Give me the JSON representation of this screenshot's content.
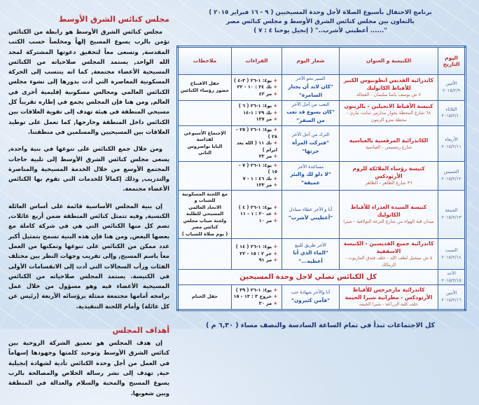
{
  "left": {
    "heading1": "مجلس كنائس الشرق الأوسط",
    "paragraphs1": [
      "مجلس كنائس الشرق الأوسط هو رابطة من الكنائس تؤمن بالرب يسوع المسيح إلهاً ومخلصاً حسب الكتب المقدسة, وتسعى معاً لتحقيق دعوتها المشتركة لمجد الله الواحد, يستمد المجلس صلاحياته من الكنائس المسيحية الأعضاء مجتمعة, كما انه ينتسب إلى الحركة المسكونية المعاصرة التي أدت بدورها إلى نشوء مجلس الكنائس العالمي ومجالس مسكونية إقليمية أخرى في العالم, ومن هنا فإن المجلس يجمع في إطاره تقريباً كل مسيحي المنطقة في هيئة تهدف إلى تقوية العلاقات بين الكنائس داخل المنطقة وخارجها, كما تعمل على توطيد العلاقات بين المسيحيين والمسلمين في منطقتنا.",
      "ومن خلال جمع الكنائس على تنوعها في بنية واحدة, يسعى مجلس كنائس الشرق الأوسط إلى تلبية حاجات المجتمع الأوسع من خلال الخدمة المسيحية والمناصرة والتدريب, وذلك إكمالاً للخدمات التي تقوم بها الكنائس الأعضاء مجتمعة.",
      "إن بنية المجلس الأساسية قائمة على أساس العائلة الكنسية, وفيه تتمثل كنائس المنطقة ضمن أربع عائلات, تضم كل منها الكنائس التي هي في شركة كاملة مع بعضها البعض, ومن هنا فإن هذه البنية تسمح بتمثيل أكبر عدد ممكن من الكنائس على تنوعها وتمكنها من العمل معاً باسم المسيح, وإلى تقريب وجهات النظر بين مختلف الفئات ورأب السجالات التي أدت إلى الانقسامات الأولى في الكنيسة. يستمد المجلس صلاحياته من الكنائس المسيحية الأعضاء فيه وهو مسؤول من خلال عمل برامجه أمامها مجتمعة ممثلة برؤسائه الأربعة (رئيس عن كل عائلة) وأمام اللجنة التنفيذية."
    ],
    "heading2": "أهداف المجلس",
    "paragraph2": "إن هدف المجلس هو تعميق الشركة الروحية بين كنائس الشرق الأوسط وتوحيد كلمتها وجهودها إسهاماً في العمل من أجل وحدة الكنائس تأدية لشهادة إنجيلية حية, تهدف إلى نشر رسالة الخلاص والمصالحة بالرب يسوع المسيح والمحبة والسلام والعدالة في المنطقة وبين شعوبها."
  },
  "header": {
    "line1": "برنامج الاحتفال بأسبوع الصلاة لأجل وحدة المسيحيين ( ٩ - ١٦ فبراير ٢٠١٥ )",
    "line2": "بالتعاون بين مجلس كنائس الشرق الأوسط و مجلس كنائس مصر",
    "line3": "\"...... أعطيني لأشرب..\" ( إنجيل يوحنا ٤ : ٧ )"
  },
  "table": {
    "columns": [
      "اليوم التاريخ",
      "الكنيسة و العنوان",
      "شعار اليوم",
      "القراءات",
      "ملاحظات"
    ],
    "rows": [
      {
        "day": "الأثنين",
        "date": "٢٠١٥/٢/٩",
        "church": "كاتدرائية القديس انطونيوس الكبير للأقباط الكاثوليك",
        "address": "٧ ش يوسف باشا سليمان - الفجالة",
        "slogan": "السير نحو الآخر",
        "quote": "\"كان لابد أن يجتاز السامرة\"",
        "readings": [
          "يو٤: ١-٢٦ ( ٣-٤ )",
          "تك ٢٤ : ١٠ - ٢٢",
          "مز ٤٢"
        ],
        "notes": [
          "حفل الافتتاح",
          "حضور رؤساء الكنائس"
        ]
      },
      {
        "day": "الثلاثاء",
        "date": "٢٠١٥/٢/١٠",
        "church": "كنيسة الأقباط الانجيلين - بالزيتون",
        "address": "٦٨ شارع المحطة بجوار مدارس سانت ماري - محطة مترو الزيتون",
        "slogan": "التعب من أجل الآخر",
        "quote": "\"كان يسوع قد تعب من السفر\"",
        "readings": [
          "يو٤: ١-٢٦ ( ٦ )",
          "تك ٢٩ : ١-١٤",
          "مز ١٣٧"
        ],
        "notes": []
      },
      {
        "day": "الأربعاء",
        "date": "٢٠١٥/٢/١١",
        "church": "الكاتدرائية المرقسية بالعباسية",
        "address": "شارع رمسيس - العباسية",
        "slogan": "الترك من أجل الآخر",
        "quote": "\"فتركت المرأة جرتها\"",
        "readings": [
          "يو٤: ١-٢٦ ( ٢٥ - ٢٨ )",
          "تك ١١ ( الله يعد ابرام )",
          "مز ٢٣"
        ],
        "notes": [
          "الإجتماع الأسبوعي لقداسة",
          "البابا تواضروس الثاني"
        ]
      },
      {
        "day": "الخميس",
        "date": "٢٠١٥/٢/١٢",
        "church": "كنيسة رؤساء الملائكة للروم الأرثوذكس",
        "address": "٣٦ شارع الظاهر - الظاهر",
        "slogan": "مساعدة الآخر",
        "quote": "\"لا دلو لك والبئر عميقة\"",
        "readings": [
          "يو٤: ١-٢٦ ( ٧ - ١٥ )",
          "تك ٤٦ : ١ - ٧",
          "مز ١٣٣"
        ],
        "notes": []
      },
      {
        "day": "الجمعة",
        "date": "٢٠١٥/٢/١٣",
        "church": "كنيسة السيدة العذراء للأقباط الكاثوليك",
        "address": "ميدان قبة الهواء من شارع الترعة البولاقية - شبرا",
        "slogan": "أنا و الآخر عطاء متبادل",
        "quote": "\"أعطيني لأشرب\"",
        "readings": [
          "يو٤: ١-٢٦ ( ٤ )",
          "عد ٢٠ : ١ - ١١",
          "مز ١٠"
        ],
        "notes": [
          "مع اللجنة المسكونية للشباب و",
          "الاتحاد العالمي المسيحي للطلبة",
          "ولجنة شباب مجلس كنائس مصر",
          "( يوم صلاة للشباب )"
        ]
      },
      {
        "day": "السبت",
        "date": "٢٠١٥/٢/١٤",
        "church": "كاتدرائية جميع القديسين - الكنيسة الاسقفية",
        "address": "٥ ش ميشيل لطف الله - خلف فندق الماريوت - الزمالك",
        "slogan": "الآخر طريق للنبع",
        "quote": "\"الماء الذي أنا أعطيه...\"",
        "readings": [
          "يو٤: ١-٢٦ ( ١٤ )",
          "خر ٢ : ١٥ - ٢٢",
          "مز ٩١"
        ],
        "notes": []
      },
      {
        "day": "الأحد",
        "date": "٢٠١٥/٢/١٥",
        "all_churches": "كل الكنائس تصلي لاجل وحدة المسيحين"
      },
      {
        "day": "الأثنين",
        "date": "٢٠١٥/٢/١٦",
        "church": "كاتدرائية مارجرجس للأقباط الأرثوذكس - مطرانية شبرا الخيمة",
        "address": "خلف كلية الزراعة - شبرا الخيمه",
        "slogan": "أنا والآخر شهادة حب",
        "quote": "\"فآمن كثيرون\"",
        "readings": [
          "يو٤: ١-٢٦ ( ٣٩ )",
          "خروج ٣ : ١٣ - ١٥",
          "مز ٣٠"
        ],
        "notes": [
          "حفل الختام"
        ]
      }
    ]
  },
  "footer": "كل الاجتماعات تبدأ في تمام الساعة السادسة والنصف مساء ( ٦,٣٠ م )"
}
